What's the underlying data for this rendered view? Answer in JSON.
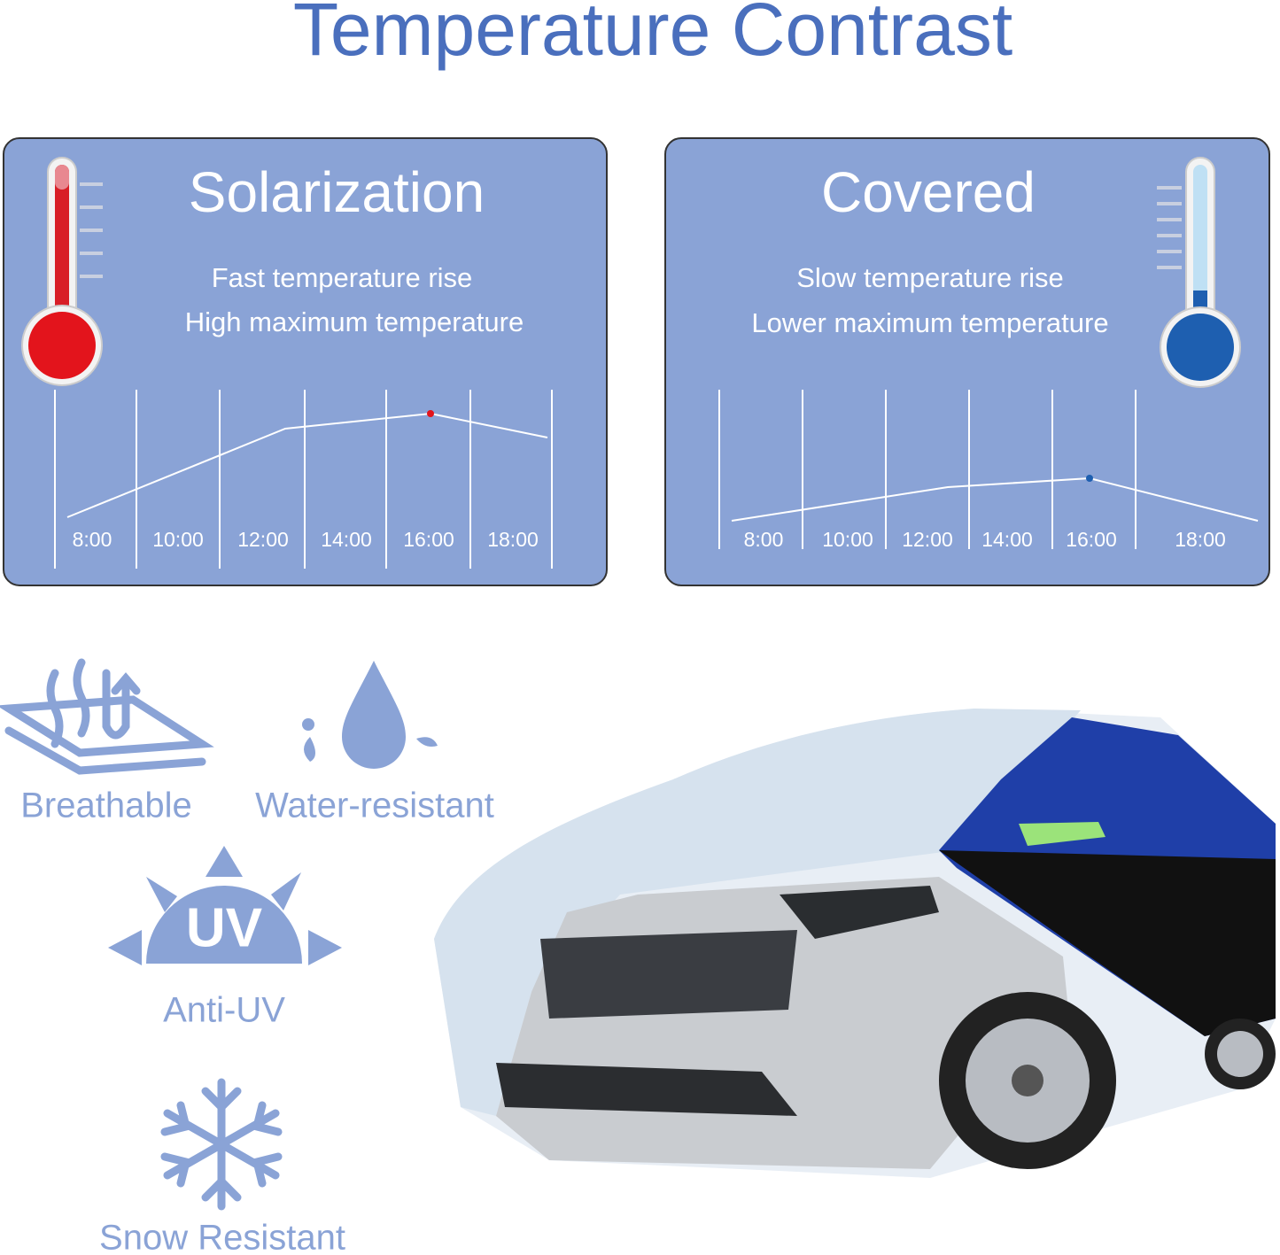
{
  "title": "Temperature Contrast",
  "panels": [
    {
      "title": "Solarization",
      "lines": [
        "Fast temperature rise",
        "High maximum temperature"
      ],
      "times": [
        "8:00",
        "10:00",
        "12:00",
        "14:00",
        "16:00",
        "18:00"
      ]
    },
    {
      "title": "Covered",
      "lines": [
        "Slow temperature rise",
        "Lower maximum temperature"
      ],
      "times": [
        "8:00",
        "10:00",
        "12:00",
        "14:00",
        "16:00",
        "18:00"
      ]
    }
  ],
  "uv_icon": "UV",
  "features": [
    "Breathable",
    "Water-resistant",
    "Anti-UV",
    "Snow Resistant"
  ]
}
